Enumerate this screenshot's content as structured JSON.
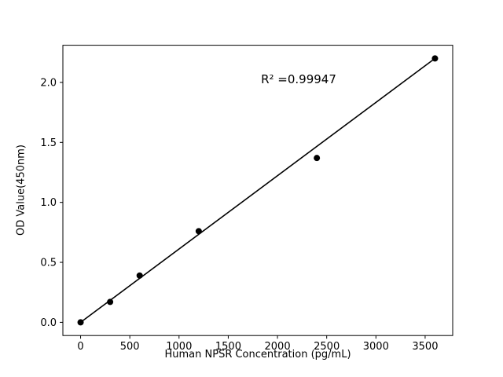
{
  "chart_data": {
    "type": "scatter",
    "title": "",
    "xlabel": "Human NPSR Concentration (pg/mL)",
    "ylabel": "OD Value(450nm)",
    "x": [
      0,
      300,
      600,
      1200,
      2400,
      3600
    ],
    "y": [
      0.0,
      0.17,
      0.39,
      0.76,
      1.37,
      2.2
    ],
    "fit_line": {
      "x1": 0,
      "y1": 0.0,
      "x2": 3600,
      "y2": 2.2
    },
    "annotation": {
      "text": "R² =0.99947",
      "x": 2200,
      "y": 2.02
    },
    "xlim": [
      -180,
      3780
    ],
    "ylim": [
      -0.11,
      2.31
    ],
    "xticks": [
      0,
      500,
      1000,
      1500,
      2000,
      2500,
      3000,
      3500
    ],
    "yticks": [
      0.0,
      0.5,
      1.0,
      1.5,
      2.0
    ],
    "grid": false,
    "legend": null,
    "marker_color": "#000000",
    "line_color": "#000000",
    "background_color": "#ffffff"
  }
}
